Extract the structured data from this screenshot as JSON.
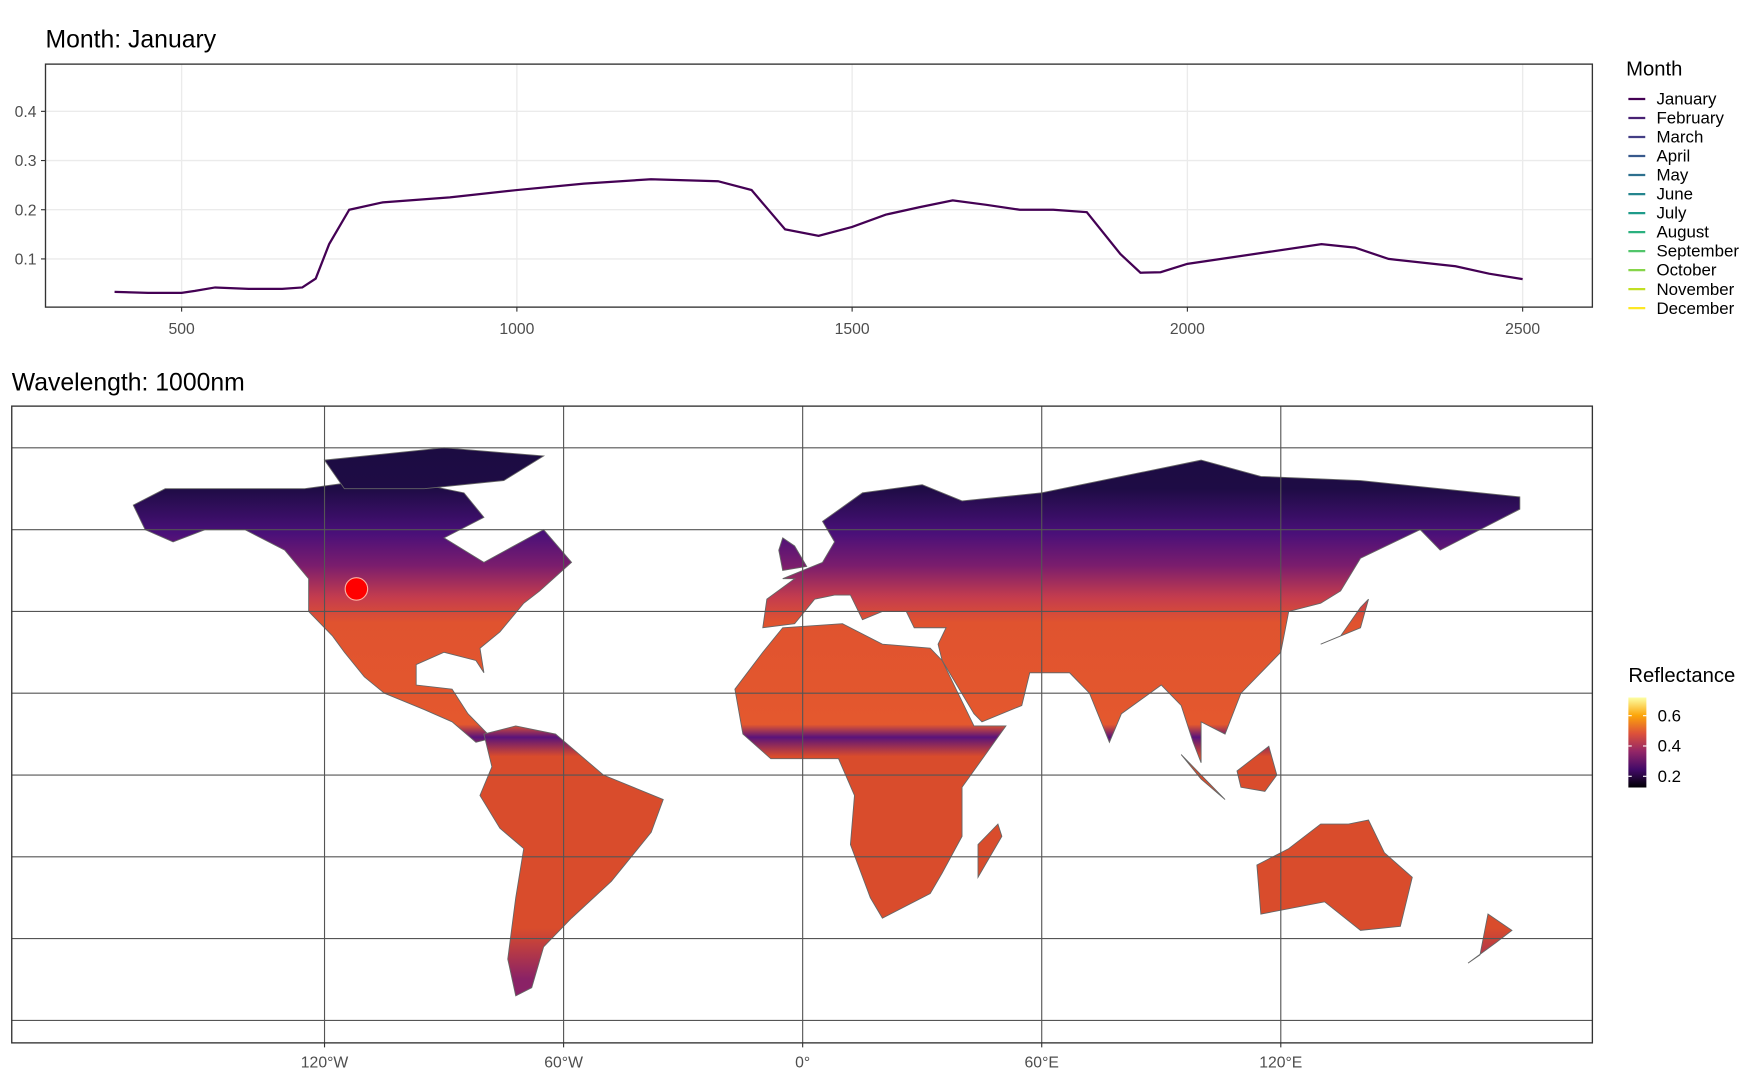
{
  "chart_data": [
    {
      "type": "line",
      "title": "Month: January",
      "x": [
        400,
        450,
        500,
        520,
        550,
        600,
        650,
        680,
        700,
        720,
        750,
        800,
        900,
        1000,
        1100,
        1200,
        1300,
        1350,
        1400,
        1450,
        1500,
        1550,
        1600,
        1650,
        1700,
        1750,
        1800,
        1850,
        1900,
        1930,
        1960,
        2000,
        2100,
        2200,
        2250,
        2300,
        2400,
        2450,
        2500
      ],
      "series": [
        {
          "name": "January",
          "color": "#440154",
          "values": [
            0.033,
            0.031,
            0.031,
            0.035,
            0.042,
            0.039,
            0.039,
            0.042,
            0.06,
            0.13,
            0.2,
            0.215,
            0.225,
            0.24,
            0.253,
            0.262,
            0.258,
            0.24,
            0.16,
            0.147,
            0.165,
            0.19,
            0.205,
            0.219,
            0.21,
            0.2,
            0.2,
            0.195,
            0.11,
            0.072,
            0.073,
            0.09,
            0.11,
            0.13,
            0.123,
            0.1,
            0.085,
            0.07,
            0.059
          ]
        },
        {
          "name": "February",
          "color": "#482173"
        },
        {
          "name": "March",
          "color": "#433e85"
        },
        {
          "name": "April",
          "color": "#38598c"
        },
        {
          "name": "May",
          "color": "#2d708e"
        },
        {
          "name": "June",
          "color": "#25858e"
        },
        {
          "name": "July",
          "color": "#1e9b8a"
        },
        {
          "name": "August",
          "color": "#2ab07f"
        },
        {
          "name": "September",
          "color": "#51c56a"
        },
        {
          "name": "October",
          "color": "#86d549"
        },
        {
          "name": "November",
          "color": "#c2df23"
        },
        {
          "name": "December",
          "color": "#fde725"
        }
      ],
      "legend_title": "Month",
      "xlim": [
        297,
        2604
      ],
      "xticks": [
        500,
        1000,
        1500,
        2000,
        2500
      ],
      "ylim": [
        0.002,
        0.496
      ],
      "yticks": [
        0.1,
        0.2,
        0.3,
        0.4
      ],
      "grid": true
    },
    {
      "type": "map",
      "title": "Wavelength: 1000nm",
      "xlim": [
        -198.5,
        198.2
      ],
      "xticks": [
        {
          "value": -120,
          "label": "120°W"
        },
        {
          "value": -60,
          "label": "60°W"
        },
        {
          "value": 0,
          "label": "0°"
        },
        {
          "value": 60,
          "label": "60°E"
        },
        {
          "value": 120,
          "label": "120°E"
        }
      ],
      "ylim": [
        -65.5,
        90.2
      ],
      "ygrid": [
        -60,
        -40,
        -20,
        0,
        20,
        40,
        60,
        80
      ],
      "points": [
        {
          "x": -112,
          "y": 45.5,
          "color": "#ff0000"
        }
      ],
      "colorbar": {
        "title": "Reflectance",
        "lim": [
          0.126,
          0.72
        ],
        "ticks": [
          0.2,
          0.4,
          0.6
        ],
        "colors": [
          "#000004",
          "#420a68",
          "#932667",
          "#dd513a",
          "#fca50a",
          "#fcffa4"
        ]
      }
    }
  ]
}
